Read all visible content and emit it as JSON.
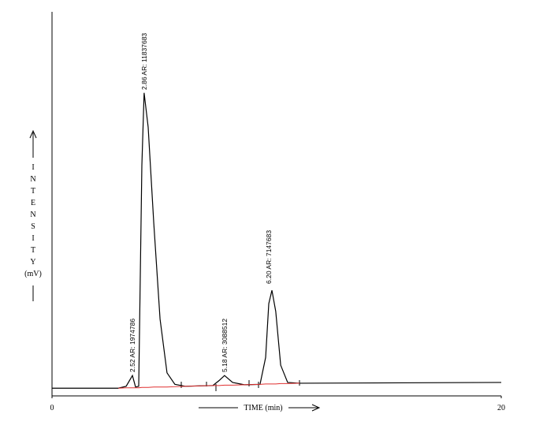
{
  "chart_data": {
    "type": "line",
    "x_label": "TIME (min)",
    "y_label": "INTENSITY",
    "y_unit": "(mV)",
    "x": [
      0,
      2.95,
      3.3,
      3.58,
      3.72,
      3.86,
      4.0,
      4.1,
      4.28,
      4.53,
      4.81,
      5.12,
      5.47,
      5.93,
      7.16,
      7.44,
      7.68,
      8.04,
      8.56,
      9.26,
      9.51,
      9.65,
      9.79,
      9.96,
      10.18,
      10.49,
      11.02,
      20
    ],
    "series": [
      {
        "color": "#000000",
        "values": [
          2,
          2,
          2.5,
          5.3,
          2.3,
          2.5,
          60,
          78.9,
          70,
          45,
          20,
          6,
          3,
          2.5,
          2.7,
          4,
          5.3,
          3.5,
          2.9,
          3.0,
          10,
          24,
          27.5,
          22,
          8,
          3.5,
          3.3,
          3.5
        ]
      },
      {
        "color": "#e03030",
        "values": [
          null,
          2.0,
          2.1,
          2.1,
          2.1,
          2.1,
          2.2,
          2.2,
          2.2,
          2.3,
          2.3,
          2.3,
          2.4,
          2.5,
          2.7,
          2.7,
          2.8,
          2.8,
          2.9,
          3.0,
          3.1,
          3.1,
          3.1,
          3.1,
          3.2,
          3.2,
          3.3,
          null
        ]
      }
    ],
    "annotations": [
      "2.52 AR: 1974786",
      "2.86 AR: 11837683",
      "5.18 AR: 3088512",
      "6.20 AR: 7147683"
    ],
    "annotation_color": "#e03030",
    "xlim": [
      0,
      20
    ],
    "xticks": [
      0,
      20
    ],
    "ylim": [
      0,
      100
    ],
    "grid": false
  }
}
